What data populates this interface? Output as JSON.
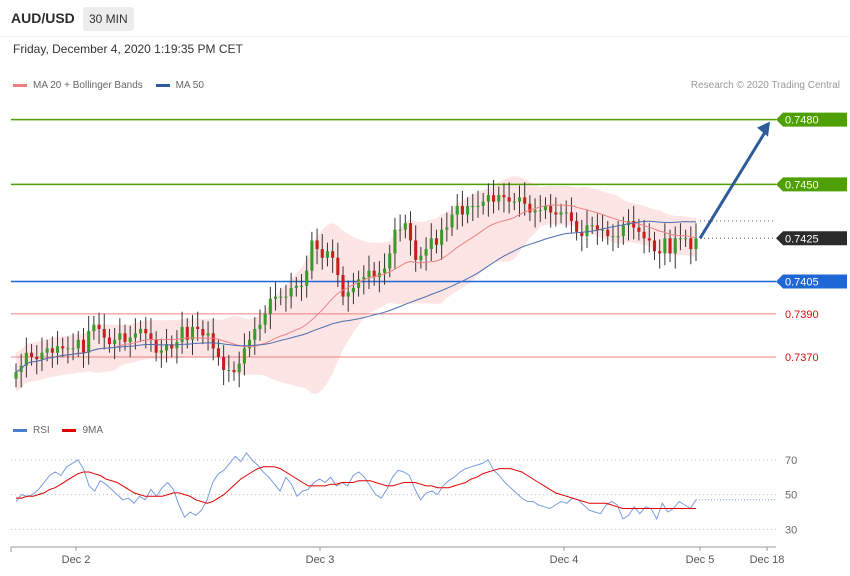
{
  "header": {
    "symbol": "AUD/USD",
    "timeframe": "30 MIN",
    "datetime": "Friday, December 4, 2020 1:19:35 PM CET",
    "credit": "Research © 2020 Trading Central"
  },
  "legend_main": [
    {
      "label": "MA 20 + Bollinger Bands",
      "color": "#f08080"
    },
    {
      "label": "MA 50",
      "color": "#2e5c9a"
    }
  ],
  "legend_rsi": [
    {
      "label": "RSI",
      "color": "#4a7fd4"
    },
    {
      "label": "9MA",
      "color": "#e00000"
    }
  ],
  "colors": {
    "resistance": "#4ea000",
    "support": "#1f66d6",
    "support2": "#f08080",
    "current": "#2b2b2b",
    "candle_up": "#3a9a2a",
    "candle_down": "#c81e1e",
    "arrow": "#2e5c9a",
    "band_fill": "#fde0e0"
  },
  "chart_data": [
    {
      "type": "candlestick",
      "title": "AUD/USD 30 MIN",
      "price_range": [
        0.7345,
        0.749
      ],
      "x_ticks": [
        "Dec 2",
        "Dec 3",
        "Dec 4",
        "Dec 5",
        "Dec 18"
      ],
      "levels": [
        {
          "value": 0.748,
          "label": "0.7480",
          "kind": "resistance"
        },
        {
          "value": 0.745,
          "label": "0.7450",
          "kind": "resistance"
        },
        {
          "value": 0.7425,
          "label": "0.7425",
          "kind": "current"
        },
        {
          "value": 0.7405,
          "label": "0.7405",
          "kind": "support"
        },
        {
          "value": 0.739,
          "label": "0.7390",
          "kind": "support2"
        },
        {
          "value": 0.737,
          "label": "0.7370",
          "kind": "support2"
        }
      ],
      "forecast_arrow": {
        "from": 0.7425,
        "to": 0.748
      },
      "closes": [
        0.7363,
        0.7366,
        0.7372,
        0.737,
        0.7369,
        0.7372,
        0.7374,
        0.7372,
        0.7375,
        0.7374,
        0.7374,
        0.7374,
        0.7378,
        0.7372,
        0.7382,
        0.7385,
        0.7383,
        0.7379,
        0.7376,
        0.7378,
        0.7381,
        0.7377,
        0.7379,
        0.7381,
        0.7383,
        0.7381,
        0.7378,
        0.7372,
        0.7373,
        0.7376,
        0.7374,
        0.7377,
        0.7384,
        0.7378,
        0.7384,
        0.7383,
        0.738,
        0.7381,
        0.7374,
        0.737,
        0.7364,
        0.7364,
        0.7363,
        0.7367,
        0.7374,
        0.7378,
        0.7383,
        0.7385,
        0.739,
        0.7397,
        0.7398,
        0.7398,
        0.7398,
        0.7402,
        0.7403,
        0.7403,
        0.741,
        0.7424,
        0.742,
        0.7416,
        0.7419,
        0.7416,
        0.7408,
        0.7398,
        0.74,
        0.7402,
        0.7406,
        0.7407,
        0.741,
        0.7407,
        0.7409,
        0.7411,
        0.7418,
        0.7429,
        0.7429,
        0.7432,
        0.7424,
        0.7415,
        0.7417,
        0.742,
        0.7425,
        0.7422,
        0.7429,
        0.743,
        0.7436,
        0.744,
        0.7436,
        0.744,
        0.744,
        0.744,
        0.7442,
        0.7445,
        0.7442,
        0.7445,
        0.7444,
        0.7442,
        0.7442,
        0.7444,
        0.7441,
        0.7437,
        0.7438,
        0.7438,
        0.744,
        0.7437,
        0.7436,
        0.7437,
        0.7437,
        0.7433,
        0.7428,
        0.7426,
        0.7431,
        0.7431,
        0.7429,
        0.7429,
        0.7426,
        0.7426,
        0.7426,
        0.7431,
        0.7433,
        0.743,
        0.7428,
        0.7425,
        0.7424,
        0.7419,
        0.7418,
        0.7425,
        0.7418,
        0.7425,
        0.7425,
        0.7425,
        0.742,
        0.7425
      ]
    },
    {
      "type": "line",
      "title": "RSI",
      "ylim": [
        25,
        78
      ],
      "y_ticks": [
        70,
        50,
        30
      ],
      "series": [
        {
          "name": "RSI",
          "values": [
            46,
            50,
            49,
            50,
            53,
            57,
            61,
            63,
            61,
            66,
            68,
            70,
            65,
            55,
            52,
            58,
            56,
            53,
            50,
            47,
            48,
            45,
            49,
            47,
            53,
            49,
            54,
            57,
            53,
            44,
            37,
            40,
            38,
            41,
            47,
            57,
            62,
            64,
            68,
            72,
            69,
            74,
            70,
            67,
            63,
            60,
            56,
            52,
            60,
            56,
            49,
            52,
            53,
            57,
            59,
            57,
            60,
            55,
            57,
            55,
            61,
            63,
            60,
            55,
            50,
            48,
            53,
            60,
            64,
            63,
            61,
            53,
            47,
            51,
            52,
            50,
            55,
            58,
            60,
            63,
            65,
            66,
            67,
            68,
            70,
            64,
            61,
            57,
            54,
            51,
            48,
            46,
            46,
            44,
            43,
            42,
            44,
            46,
            45,
            48,
            47,
            44,
            41,
            40,
            39,
            44,
            46,
            44,
            36,
            38,
            43,
            39,
            43,
            42,
            36,
            45,
            40,
            42,
            46,
            44,
            42,
            47
          ]
        },
        {
          "name": "9MA",
          "values": [
            48,
            48,
            49,
            49,
            50,
            51,
            53,
            54,
            56,
            58,
            60,
            62,
            63,
            63,
            62,
            61,
            59,
            58,
            57,
            55,
            53,
            51,
            50,
            49,
            49,
            49,
            49,
            50,
            51,
            51,
            50,
            49,
            47,
            46,
            45,
            46,
            48,
            50,
            53,
            56,
            59,
            61,
            63,
            65,
            66,
            66,
            66,
            65,
            63,
            61,
            59,
            57,
            55,
            55,
            55,
            55,
            56,
            56,
            57,
            57,
            57,
            58,
            58,
            58,
            57,
            56,
            55,
            55,
            56,
            57,
            57,
            57,
            56,
            55,
            55,
            54,
            54,
            54,
            55,
            56,
            57,
            59,
            60,
            62,
            63,
            64,
            65,
            65,
            65,
            64,
            63,
            61,
            59,
            57,
            55,
            53,
            51,
            50,
            49,
            48,
            47,
            46,
            45,
            45,
            45,
            45,
            44,
            43,
            42,
            42,
            42,
            42,
            42,
            42,
            42,
            42,
            42,
            42,
            42,
            42,
            42,
            42
          ]
        }
      ]
    }
  ]
}
